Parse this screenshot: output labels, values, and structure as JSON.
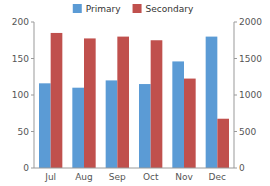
{
  "chart_data": {
    "type": "bar",
    "categories": [
      "Jul",
      "Aug",
      "Sep",
      "Oct",
      "Nov",
      "Dec"
    ],
    "series": [
      {
        "name": "Primary",
        "color": "#5B9BD5",
        "values": [
          116,
          110,
          120,
          115,
          146,
          180
        ]
      },
      {
        "name": "Secondary",
        "color": "#C0504D",
        "values": [
          1850,
          1775,
          1800,
          1750,
          1225,
          675
        ],
        "axis": "y2"
      }
    ],
    "ylim": [
      0,
      200
    ],
    "yticks": [
      0,
      50,
      100,
      150,
      200
    ],
    "y2lim": [
      0,
      2000
    ],
    "y2ticks": [
      0,
      500,
      1000,
      1500,
      2000
    ],
    "grid": false,
    "legend": "top"
  }
}
